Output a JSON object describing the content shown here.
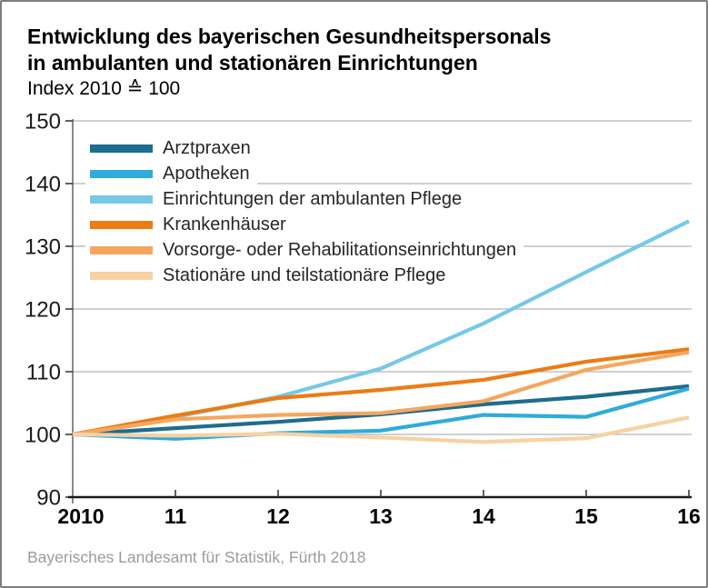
{
  "chart_data": {
    "type": "line",
    "title_line1": "Entwicklung des bayerischen Gesundheitspersonals",
    "title_line2": "in ambulanten und stationären Einrichtungen",
    "subtitle": "Index 2010 ≙ 100",
    "x": [
      2010,
      2011,
      2012,
      2013,
      2014,
      2015,
      2016
    ],
    "x_tick_labels": [
      "2010",
      "11",
      "12",
      "13",
      "14",
      "15",
      "16"
    ],
    "y_ticks": [
      90,
      100,
      110,
      120,
      130,
      140,
      150
    ],
    "ylim": [
      90,
      150
    ],
    "grid": "horizontal",
    "legend_position": "upper-left-inside",
    "series": [
      {
        "name": "Arztpraxen",
        "color": "#1e6c8f",
        "values": [
          100,
          101,
          102,
          103.2,
          104.8,
          106,
          107.7
        ]
      },
      {
        "name": "Apotheken",
        "color": "#2fabdc",
        "values": [
          100,
          99.3,
          100.2,
          100.6,
          103.1,
          102.8,
          107.3
        ]
      },
      {
        "name": "Einrichtungen der ambulanten Pflege",
        "color": "#76c8e8",
        "values": [
          100,
          102.8,
          106,
          110.5,
          117.7,
          125.9,
          134
        ]
      },
      {
        "name": "Krankenhäuser",
        "color": "#ec7c15",
        "values": [
          100,
          103,
          105.8,
          107.1,
          108.7,
          111.6,
          113.6
        ]
      },
      {
        "name": "Vorsorge- oder Rehabilitationseinrichtungen",
        "color": "#f5a75f",
        "values": [
          100,
          102.4,
          103.1,
          103.4,
          105.3,
          110.3,
          113.1
        ]
      },
      {
        "name": "Stationäre und teilstationäre Pflege",
        "color": "#f8d1a3",
        "values": [
          100,
          99.8,
          100.1,
          99.5,
          98.8,
          99.4,
          102.7
        ]
      }
    ]
  },
  "footer": "Bayerisches Landesamt für Statistik, Fürth 2018",
  "colors": {
    "grid": "#b3b3b3",
    "axis_x": "#1a1a1a",
    "axis_y": "#595959",
    "tick": "#3a3a3a",
    "tick_label_y": "#1a1a1a",
    "tick_label_x": "#000000",
    "footer_text": "#9c9c9c",
    "border": "#7d7d7d"
  }
}
